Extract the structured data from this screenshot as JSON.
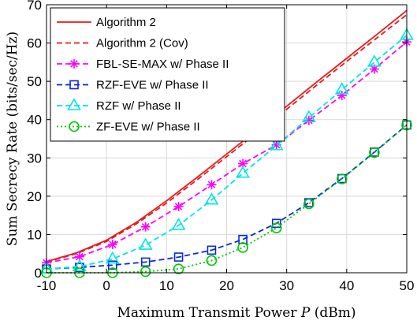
{
  "chart_data": {
    "type": "line",
    "xlabel": "Maximum Transmit Power P (dBm)",
    "xlabel_prefix": "Maximum Transmit Power ",
    "xlabel_var": "P",
    "xlabel_suffix": " (dBm)",
    "ylabel": "Sum Secrecy Rate (bits/sec/Hz)",
    "xlim": [
      -10,
      50
    ],
    "ylim": [
      0,
      70
    ],
    "xticks": [
      -10,
      0,
      10,
      20,
      30,
      40,
      50
    ],
    "yticks": [
      0,
      10,
      20,
      30,
      40,
      50,
      60,
      70
    ],
    "grid": true,
    "legend_position": "top-left",
    "series": [
      {
        "name": "Algorithm 2",
        "color": "#e8191c",
        "line_style": "solid",
        "marker": "none",
        "x": [
          -10,
          -5,
          0,
          5,
          10,
          15,
          20,
          25,
          30,
          35,
          40,
          45,
          50
        ],
        "y": [
          2.9,
          5.2,
          8.5,
          13.2,
          18.8,
          24.8,
          31.0,
          37.2,
          43.5,
          49.8,
          56.0,
          62.2,
          68.5
        ]
      },
      {
        "name": "Algorithm 2 (Cov)",
        "color": "#e8191c",
        "line_style": "dashed",
        "marker": "none",
        "x": [
          -10,
          -5,
          0,
          5,
          10,
          15,
          20,
          25,
          30,
          35,
          40,
          45,
          50
        ],
        "y": [
          2.8,
          5.0,
          8.2,
          12.8,
          18.2,
          24.2,
          30.3,
          36.5,
          42.7,
          49.0,
          55.2,
          61.3,
          67.4
        ]
      },
      {
        "name": "FBL-SE-MAX w/ Phase II",
        "color": "#ff00ff",
        "line_style": "dashed",
        "marker": "asterisk",
        "x": [
          -10,
          -4.5,
          1,
          6.5,
          12,
          17.5,
          22.7,
          28.3,
          33.7,
          39.2,
          44.6,
          50
        ],
        "y": [
          2.6,
          4.2,
          7.4,
          12.0,
          17.3,
          23.0,
          28.5,
          33.4,
          39.8,
          46.3,
          53.2,
          60.3
        ]
      },
      {
        "name": "RZF-EVE w/ Phase II",
        "color": "#0a2ad6",
        "line_style": "dashed",
        "marker": "square",
        "x": [
          -10,
          -4.5,
          1,
          6.5,
          12,
          17.5,
          22.7,
          28.3,
          33.7,
          39.2,
          44.6,
          50
        ],
        "y": [
          1.0,
          1.4,
          2.0,
          2.8,
          4.1,
          5.9,
          8.7,
          12.9,
          18.3,
          24.6,
          31.5,
          38.6
        ]
      },
      {
        "name": "RZF w/ Phase II",
        "color": "#00e5e5",
        "line_style": "dashed",
        "marker": "triangle",
        "x": [
          -10,
          -4.5,
          1,
          6.5,
          12,
          17.5,
          22.7,
          28.3,
          33.7,
          39.2,
          44.6,
          50
        ],
        "y": [
          1.0,
          1.6,
          3.6,
          7.2,
          12.4,
          19.0,
          26.0,
          33.2,
          40.5,
          47.8,
          55.0,
          62.0
        ]
      },
      {
        "name": "ZF-EVE w/ Phase II",
        "color": "#00c800",
        "line_style": "dotted",
        "marker": "circle",
        "x": [
          -10,
          -4.5,
          1,
          6.5,
          12,
          17.5,
          22.7,
          28.3,
          33.7,
          39.2,
          44.6,
          50
        ],
        "y": [
          0.0,
          0.0,
          0.0,
          0.3,
          1.0,
          3.2,
          6.6,
          11.7,
          18.0,
          24.5,
          31.4,
          38.6
        ]
      }
    ]
  }
}
